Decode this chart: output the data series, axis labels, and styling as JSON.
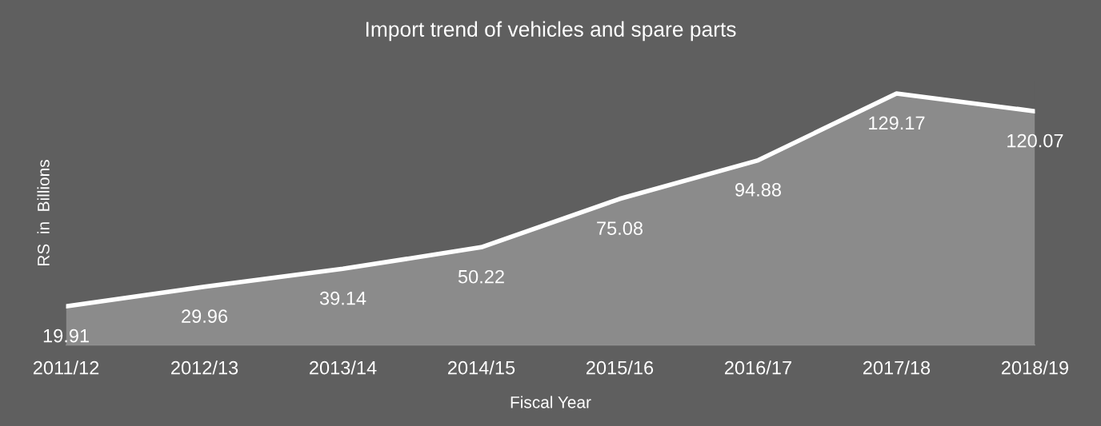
{
  "chart_data": {
    "type": "area",
    "title": "Import trend of vehicles and spare parts",
    "xlabel": "Fiscal Year",
    "ylabel": "RS  in  Billions",
    "categories": [
      "2011/12",
      "2012/13",
      "2013/14",
      "2014/15",
      "2015/16",
      "2016/17",
      "2017/18",
      "2018/19"
    ],
    "series": [
      {
        "color": "#ffffff",
        "values": [
          19.91,
          29.96,
          39.14,
          50.22,
          75.08,
          94.88,
          129.17,
          120.07
        ]
      }
    ],
    "data_labels": true,
    "tick_labels": "x"
  }
}
